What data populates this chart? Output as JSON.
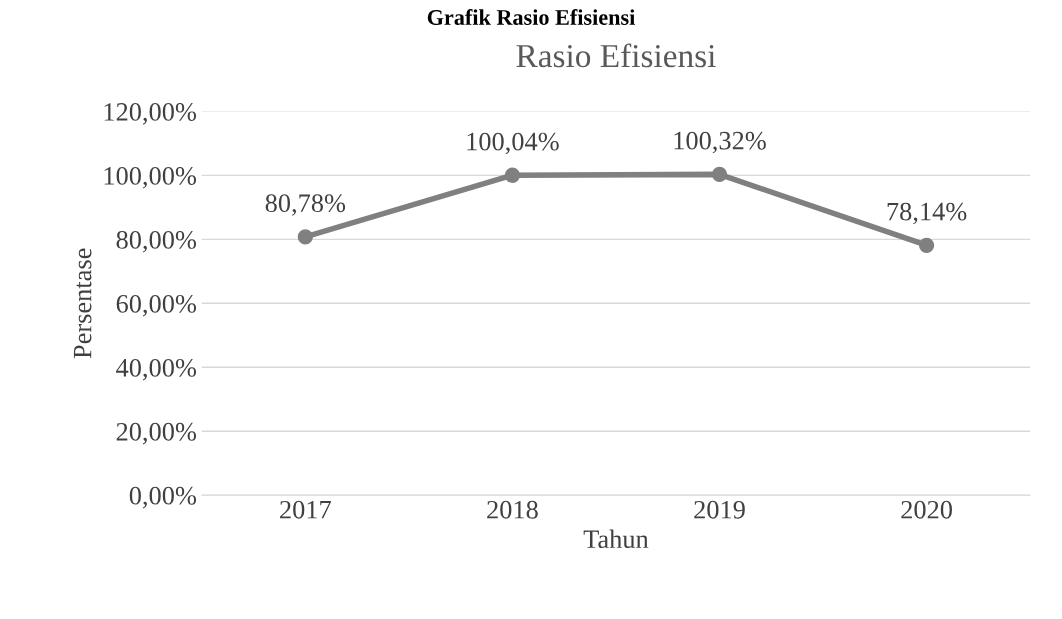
{
  "chart_data": {
    "type": "line",
    "title": "Rasio Efisiensi",
    "xlabel": "Tahun",
    "ylabel": "Persentase",
    "annotations": [
      "Grafik Rasio Efisiensi"
    ],
    "categories": [
      "2017",
      "2018",
      "2019",
      "2020"
    ],
    "series": [
      {
        "color": "#808080",
        "values": [
          80.78,
          100.04,
          100.32,
          78.14
        ],
        "value_labels": [
          "80,78%",
          "100,04%",
          "100,32%",
          "78,14%"
        ]
      }
    ],
    "ylim": [
      0,
      120
    ],
    "yticks": [
      {
        "value": 0,
        "label": "0,00%"
      },
      {
        "value": 20,
        "label": "20,00%"
      },
      {
        "value": 40,
        "label": "40,00%"
      },
      {
        "value": 60,
        "label": "60,00%"
      },
      {
        "value": 80,
        "label": "80,00%"
      },
      {
        "value": 100,
        "label": "100,00%"
      },
      {
        "value": 120,
        "label": "120,00%"
      }
    ],
    "grid": "y",
    "marker": "circle",
    "line_style": "solid",
    "legend": false
  }
}
